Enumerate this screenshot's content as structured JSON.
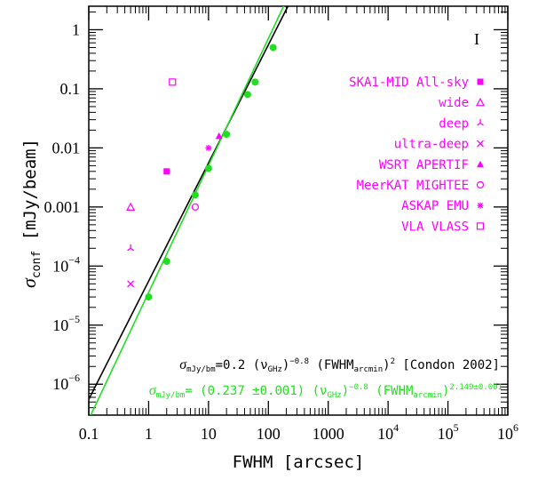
{
  "chart_data": {
    "type": "scatter",
    "title": "",
    "xlabel": "FWHM [arcsec]",
    "ylabel": {
      "symbol": "σ",
      "subscript": "conf",
      "unit": "[mJy/beam]"
    },
    "x_scale": "log",
    "y_scale": "log",
    "xlim": [
      0.1,
      1000000
    ],
    "ylim": [
      3e-07,
      2.5
    ],
    "x_ticks": [
      {
        "value": 0.1,
        "label": "0.1"
      },
      {
        "value": 1,
        "label": "1"
      },
      {
        "value": 10,
        "label": "10"
      },
      {
        "value": 100,
        "label": "100"
      },
      {
        "value": 1000,
        "label": "1000"
      },
      {
        "value": 10000,
        "label": "10",
        "exp": "4"
      },
      {
        "value": 100000,
        "label": "10",
        "exp": "5"
      },
      {
        "value": 1000000,
        "label": "10",
        "exp": "6"
      }
    ],
    "y_ticks": [
      {
        "value": 1,
        "label": "1"
      },
      {
        "value": 0.1,
        "label": "0.1"
      },
      {
        "value": 0.01,
        "label": "0.01"
      },
      {
        "value": 0.001,
        "label": "0.001"
      },
      {
        "value": 0.0001,
        "label": "10",
        "exp": "−4"
      },
      {
        "value": 1e-05,
        "label": "10",
        "exp": "−5"
      },
      {
        "value": 1e-06,
        "label": "10",
        "exp": "−6"
      }
    ],
    "colors": {
      "magenta": "#ff00ff",
      "green": "#22dd22",
      "black": "#000000"
    },
    "fit_points": [
      {
        "x": 1,
        "y": 3e-05
      },
      {
        "x": 2,
        "y": 0.00012
      },
      {
        "x": 6,
        "y": 0.0016
      },
      {
        "x": 10,
        "y": 0.0045
      },
      {
        "x": 20,
        "y": 0.017
      },
      {
        "x": 45,
        "y": 0.08
      },
      {
        "x": 60,
        "y": 0.13
      },
      {
        "x": 120,
        "y": 0.5
      }
    ],
    "survey_series": [
      {
        "name": "SKA1-MID All-sky",
        "marker": "filled-square",
        "points": [
          {
            "x": 2,
            "y": 0.004
          }
        ]
      },
      {
        "name": "wide",
        "marker": "open-triangle",
        "points": [
          {
            "x": 0.5,
            "y": 0.001
          }
        ]
      },
      {
        "name": "deep",
        "marker": "tripod",
        "points": [
          {
            "x": 0.5,
            "y": 0.0002
          }
        ]
      },
      {
        "name": "ultra-deep",
        "marker": "cross",
        "points": [
          {
            "x": 0.5,
            "y": 5e-05
          }
        ]
      },
      {
        "name": "WSRT APERTIF",
        "marker": "filled-triangle",
        "points": [
          {
            "x": 15,
            "y": 0.016
          }
        ]
      },
      {
        "name": "MeerKAT MIGHTEE",
        "marker": "open-circle",
        "points": [
          {
            "x": 6,
            "y": 0.001
          }
        ]
      },
      {
        "name": "ASKAP EMU",
        "marker": "asterisk",
        "points": [
          {
            "x": 10,
            "y": 0.01
          }
        ]
      },
      {
        "name": "VLA VLASS",
        "marker": "open-square",
        "points": [
          {
            "x": 2.5,
            "y": 0.13
          }
        ]
      }
    ],
    "lines": [
      {
        "name": "Condon 2002",
        "color": "black",
        "coef": 0.2,
        "slope": 2.0
      },
      {
        "name": "fit",
        "color": "green",
        "coef": 0.237,
        "slope": 2.149
      }
    ],
    "legend_position": "right",
    "equations": {
      "condon": {
        "a": "σ",
        "a_sub": "mJy/bm",
        "b": "=0.2 (ν",
        "b_sub": "GHz",
        "c": ")",
        "c_sup": "−0.8",
        "d": " (FWHM",
        "d_sub": "arcmin",
        "e": ")",
        "e_sup": "2",
        "f": " [Condon 2002]"
      },
      "fit": {
        "a": "σ",
        "a_sub": "mJy/bm",
        "b": "= (0.237 ±0.001) (ν",
        "b_sub": "GHz",
        "c": ")",
        "c_sup": "−0.8",
        "d": " (FWHM",
        "d_sub": "arcmin",
        "e": ")",
        "e_sup": "2.149±0.001"
      }
    },
    "corner_mark": "I"
  }
}
